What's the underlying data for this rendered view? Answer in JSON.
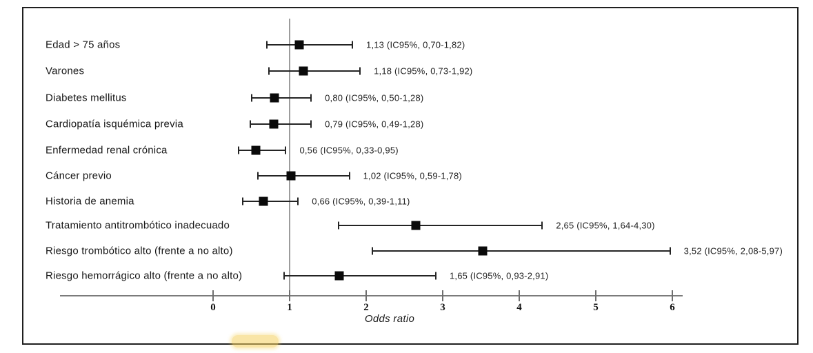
{
  "chart_data": {
    "type": "forest",
    "xlabel": "Odds ratio",
    "xlim": [
      0,
      6
    ],
    "x_ticks": [
      "0",
      "1",
      "2",
      "3",
      "4",
      "5",
      "6"
    ],
    "reference_line": 1,
    "grid": false,
    "rows": [
      {
        "label": "Edad > 75 años",
        "or": 1.13,
        "ci_low": 0.7,
        "ci_high": 1.82,
        "annotation": "1,13 (IC95%, 0,70-1,82)"
      },
      {
        "label": "Varones",
        "or": 1.18,
        "ci_low": 0.73,
        "ci_high": 1.92,
        "annotation": "1,18 (IC95%, 0,73-1,92)"
      },
      {
        "label": "Diabetes mellitus",
        "or": 0.8,
        "ci_low": 0.5,
        "ci_high": 1.28,
        "annotation": "0,80 (IC95%, 0,50-1,28)"
      },
      {
        "label": "Cardiopatía isquémica previa",
        "or": 0.79,
        "ci_low": 0.49,
        "ci_high": 1.28,
        "annotation": "0,79 (IC95%, 0,49-1,28)"
      },
      {
        "label": "Enfermedad renal crónica",
        "or": 0.56,
        "ci_low": 0.33,
        "ci_high": 0.95,
        "annotation": "0,56 (IC95%, 0,33-0,95)"
      },
      {
        "label": "Cáncer previo",
        "or": 1.02,
        "ci_low": 0.59,
        "ci_high": 1.78,
        "annotation": "1,02 (IC95%, 0,59-1,78)"
      },
      {
        "label": "Historia de anemia",
        "or": 0.66,
        "ci_low": 0.39,
        "ci_high": 1.11,
        "annotation": "0,66 (IC95%, 0,39-1,11)"
      },
      {
        "label": "Tratamiento antitrombótico inadecuado",
        "or": 2.65,
        "ci_low": 1.64,
        "ci_high": 4.3,
        "annotation": "2,65 (IC95%, 1,64-4,30)"
      },
      {
        "label": "Riesgo trombótico alto (frente a no alto)",
        "or": 3.52,
        "ci_low": 2.08,
        "ci_high": 5.97,
        "annotation": "3,52 (IC95%, 2,08-5,97)"
      },
      {
        "label": "Riesgo hemorrágico alto (frente a no alto)",
        "or": 1.65,
        "ci_low": 0.93,
        "ci_high": 2.91,
        "annotation": "1,65 (IC95%, 0,93-2,91)"
      }
    ]
  }
}
